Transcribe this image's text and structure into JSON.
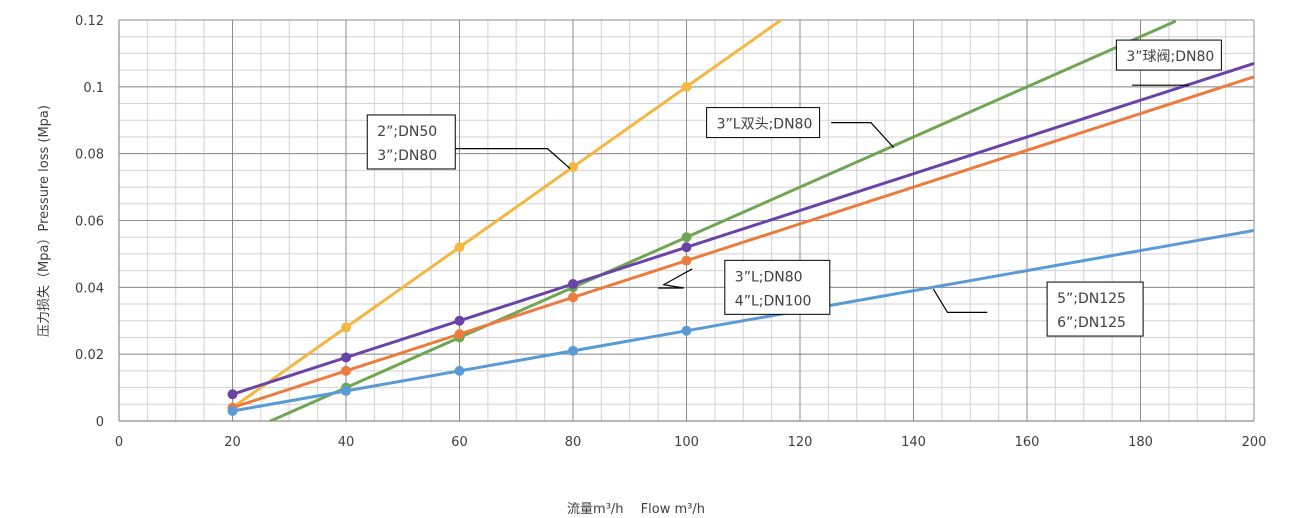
{
  "chart_data": {
    "type": "line",
    "title": "",
    "xlabel": "流量m³/h　 Flow m³/h",
    "ylabel": "压力损失（Mpa）Pressure loss (Mpa)",
    "xlim": [
      0,
      200
    ],
    "ylim": [
      0,
      0.12
    ],
    "x_ticks": [
      0,
      20,
      40,
      60,
      80,
      100,
      120,
      140,
      160,
      180,
      200
    ],
    "y_ticks": [
      0,
      0.02,
      0.04,
      0.06,
      0.08,
      0.1,
      0.12
    ],
    "x_tick_labels": [
      "0",
      "20",
      "40",
      "60",
      "80",
      "100",
      "120",
      "140",
      "160",
      "180",
      "200"
    ],
    "y_tick_labels": [
      "0",
      "0.02",
      "0.04",
      "0.06",
      "0.08",
      "0.1",
      "0.12"
    ],
    "grid": true,
    "series": [
      {
        "color": "#F4B73F",
        "x": [
          20,
          40,
          60,
          80,
          100
        ],
        "y": [
          0.004,
          0.028,
          0.052,
          0.076,
          0.1
        ],
        "trend": [
          [
            20,
            0.004
          ],
          [
            120,
            0.124
          ]
        ]
      },
      {
        "color": "#6FA653",
        "x": [
          40,
          60,
          80,
          100
        ],
        "y": [
          0.01,
          0.025,
          0.04,
          0.055
        ],
        "trend": [
          [
            26.7,
            0.0
          ],
          [
            186,
            0.1195
          ]
        ]
      },
      {
        "color": "#6A43A6",
        "x": [
          20,
          40,
          60,
          80,
          100
        ],
        "y": [
          0.008,
          0.019,
          0.03,
          0.041,
          0.052
        ],
        "trend": [
          [
            20,
            0.008
          ],
          [
            200,
            0.107
          ]
        ]
      },
      {
        "color": "#EA7C3F",
        "x": [
          20,
          40,
          60,
          80,
          100
        ],
        "y": [
          0.004,
          0.015,
          0.026,
          0.037,
          0.048
        ],
        "trend": [
          [
            20,
            0.004
          ],
          [
            200,
            0.103
          ]
        ]
      },
      {
        "color": "#5A9BD5",
        "x": [
          20,
          40,
          60,
          80,
          100
        ],
        "y": [
          0.003,
          0.009,
          0.015,
          0.021,
          0.027
        ],
        "trend": [
          [
            20,
            0.003
          ],
          [
            200,
            0.057
          ]
        ]
      }
    ],
    "annotations": [
      {
        "lines": [
          "2”;DN50",
          "3”;DN80"
        ],
        "box_at": [
          51.5,
          0.0835
        ],
        "pointer": [
          [
            51.5,
            0.0815
          ],
          [
            75.5,
            0.0815
          ],
          [
            79.5,
            0.0755
          ]
        ]
      },
      {
        "lines": [
          "3”球阀;DN80"
        ],
        "box_at": [
          185,
          0.1095
        ],
        "pointer": [
          [
            178.5,
            0.1005
          ],
          [
            188.5,
            0.1005
          ]
        ]
      },
      {
        "lines": [
          "3”L双头;DN80"
        ],
        "box_at": [
          113.5,
          0.0893
        ],
        "pointer": [
          [
            125.5,
            0.0893
          ],
          [
            132.5,
            0.0893
          ],
          [
            136.5,
            0.0818
          ]
        ]
      },
      {
        "lines": [
          "3”L;DN80",
          "4”L;DN100"
        ],
        "box_at": [
          116,
          0.04
        ],
        "pointer": [
          [
            95,
            0.0398
          ],
          [
            99.5,
            0.0398
          ],
          [
            96,
            0.0408
          ],
          [
            101,
            0.0455
          ]
        ]
      },
      {
        "lines": [
          "5”;DN125",
          "6”;DN125"
        ],
        "box_at": [
          172,
          0.0335
        ],
        "pointer": [
          [
            153,
            0.0325
          ],
          [
            146,
            0.0325
          ],
          [
            143.5,
            0.0395
          ]
        ]
      }
    ]
  }
}
